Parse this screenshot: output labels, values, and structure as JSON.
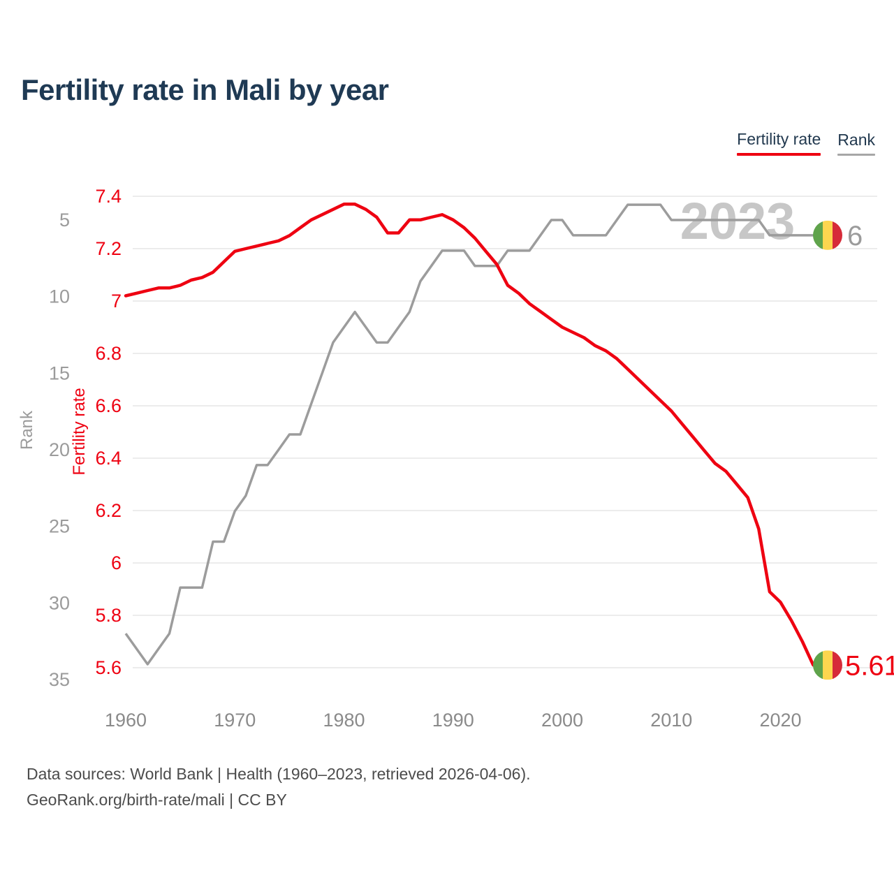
{
  "page": {
    "title": "Fertility rate in Mali by year"
  },
  "legend": {
    "items": [
      {
        "label": "Fertility rate",
        "color": "#ee0011"
      },
      {
        "label": "Rank",
        "color": "#a6a6a6"
      }
    ]
  },
  "footer": {
    "line1": "Data sources: World Bank | Health (1960–2023, retrieved 2026-04-06).",
    "line2": "GeoRank.org/birth-rate/mali | CC BY"
  },
  "chart_data": {
    "type": "line",
    "title": "Fertility rate in Mali by year",
    "watermark": "2023",
    "legend_position": "top-right",
    "grid": true,
    "x": [
      1960,
      1961,
      1962,
      1963,
      1964,
      1965,
      1966,
      1967,
      1968,
      1969,
      1970,
      1971,
      1972,
      1973,
      1974,
      1975,
      1976,
      1977,
      1978,
      1979,
      1980,
      1981,
      1982,
      1983,
      1984,
      1985,
      1986,
      1987,
      1988,
      1989,
      1990,
      1991,
      1992,
      1993,
      1994,
      1995,
      1996,
      1997,
      1998,
      1999,
      2000,
      2001,
      2002,
      2003,
      2004,
      2005,
      2006,
      2007,
      2008,
      2009,
      2010,
      2011,
      2012,
      2013,
      2014,
      2015,
      2016,
      2017,
      2018,
      2019,
      2020,
      2021,
      2022,
      2023
    ],
    "x_label_ticks": [
      1960,
      1970,
      1980,
      1990,
      2000,
      2010,
      2020
    ],
    "series": [
      {
        "name": "Fertility rate",
        "axis": "fertility",
        "color": "#ee0011",
        "end_label": "5.61",
        "values": [
          7.02,
          7.03,
          7.04,
          7.05,
          7.05,
          7.06,
          7.08,
          7.09,
          7.11,
          7.15,
          7.19,
          7.2,
          7.21,
          7.22,
          7.23,
          7.25,
          7.28,
          7.31,
          7.33,
          7.35,
          7.37,
          7.37,
          7.35,
          7.32,
          7.26,
          7.26,
          7.31,
          7.31,
          7.32,
          7.33,
          7.31,
          7.28,
          7.24,
          7.19,
          7.14,
          7.06,
          7.03,
          6.99,
          6.96,
          6.93,
          6.9,
          6.88,
          6.86,
          6.83,
          6.81,
          6.78,
          6.74,
          6.7,
          6.66,
          6.62,
          6.58,
          6.53,
          6.48,
          6.43,
          6.38,
          6.35,
          6.3,
          6.25,
          6.13,
          5.89,
          5.85,
          5.78,
          5.7,
          5.61
        ]
      },
      {
        "name": "Rank",
        "axis": "rank",
        "color": "#9c9c9c",
        "end_label": "6",
        "values": [
          32,
          33,
          34,
          33,
          32,
          29,
          29,
          29,
          26,
          26,
          24,
          23,
          21,
          21,
          20,
          19,
          19,
          17,
          15,
          13,
          12,
          11,
          12,
          13,
          13,
          12,
          11,
          9,
          8,
          7,
          7,
          7,
          8,
          8,
          8,
          7,
          7,
          7,
          6,
          5,
          5,
          6,
          6,
          6,
          6,
          5,
          4,
          4,
          4,
          4,
          5,
          5,
          5,
          5,
          5,
          5,
          5,
          5,
          5,
          6,
          6,
          6,
          6,
          6
        ]
      }
    ],
    "axes": {
      "fertility": {
        "label": "Fertility rate",
        "color": "#ee0011",
        "tick_values": [
          7.4,
          7.2,
          7.0,
          6.8,
          6.6,
          6.4,
          6.2,
          6.0,
          5.8,
          5.6
        ],
        "tick_labels": [
          "7.4",
          "7.2",
          "7",
          "6.8",
          "6.6",
          "6.4",
          "6.2",
          "6",
          "5.8",
          "5.6"
        ],
        "range": [
          5.6,
          7.4
        ]
      },
      "rank": {
        "label": "Rank",
        "color": "#9b9b9b",
        "tick_values": [
          5,
          10,
          15,
          20,
          25,
          30,
          35
        ],
        "tick_labels": [
          "5",
          "10",
          "15",
          "20",
          "25",
          "30",
          "35"
        ],
        "inverted": true,
        "range": [
          4,
          35
        ]
      },
      "x": {
        "tick_labels": [
          "1960",
          "1970",
          "1980",
          "1990",
          "2000",
          "2010",
          "2020"
        ],
        "color": "#8a8a8a",
        "range": [
          1960,
          2023
        ]
      }
    },
    "flag_icon": {
      "name": "mali-flag",
      "stripe_colors": [
        "#5fa34b",
        "#fdd64f",
        "#d62b39"
      ]
    }
  }
}
